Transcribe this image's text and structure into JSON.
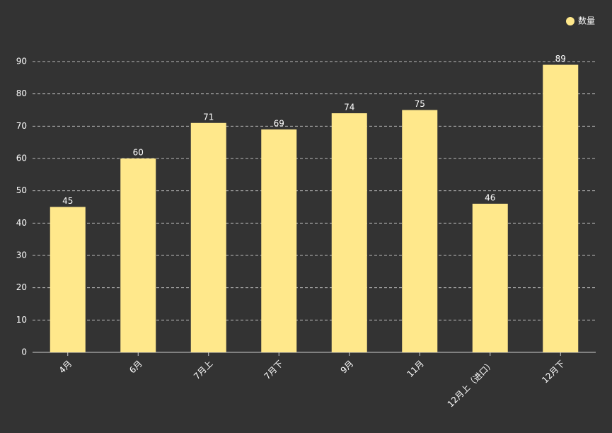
{
  "chart_data": {
    "type": "bar",
    "categories": [
      "4月",
      "6月",
      "7月上",
      "7月下",
      "9月",
      "11月",
      "12月上（进口）",
      "12月下"
    ],
    "series": [
      {
        "name": "数量",
        "color": "#ffe88b",
        "values": [
          45,
          60,
          71,
          69,
          74,
          75,
          46,
          89
        ]
      }
    ],
    "ylim": [
      0,
      90
    ],
    "yticks": [
      0,
      10,
      20,
      30,
      40,
      50,
      60,
      70,
      80,
      90
    ],
    "grid": true,
    "legend": "top-right"
  }
}
